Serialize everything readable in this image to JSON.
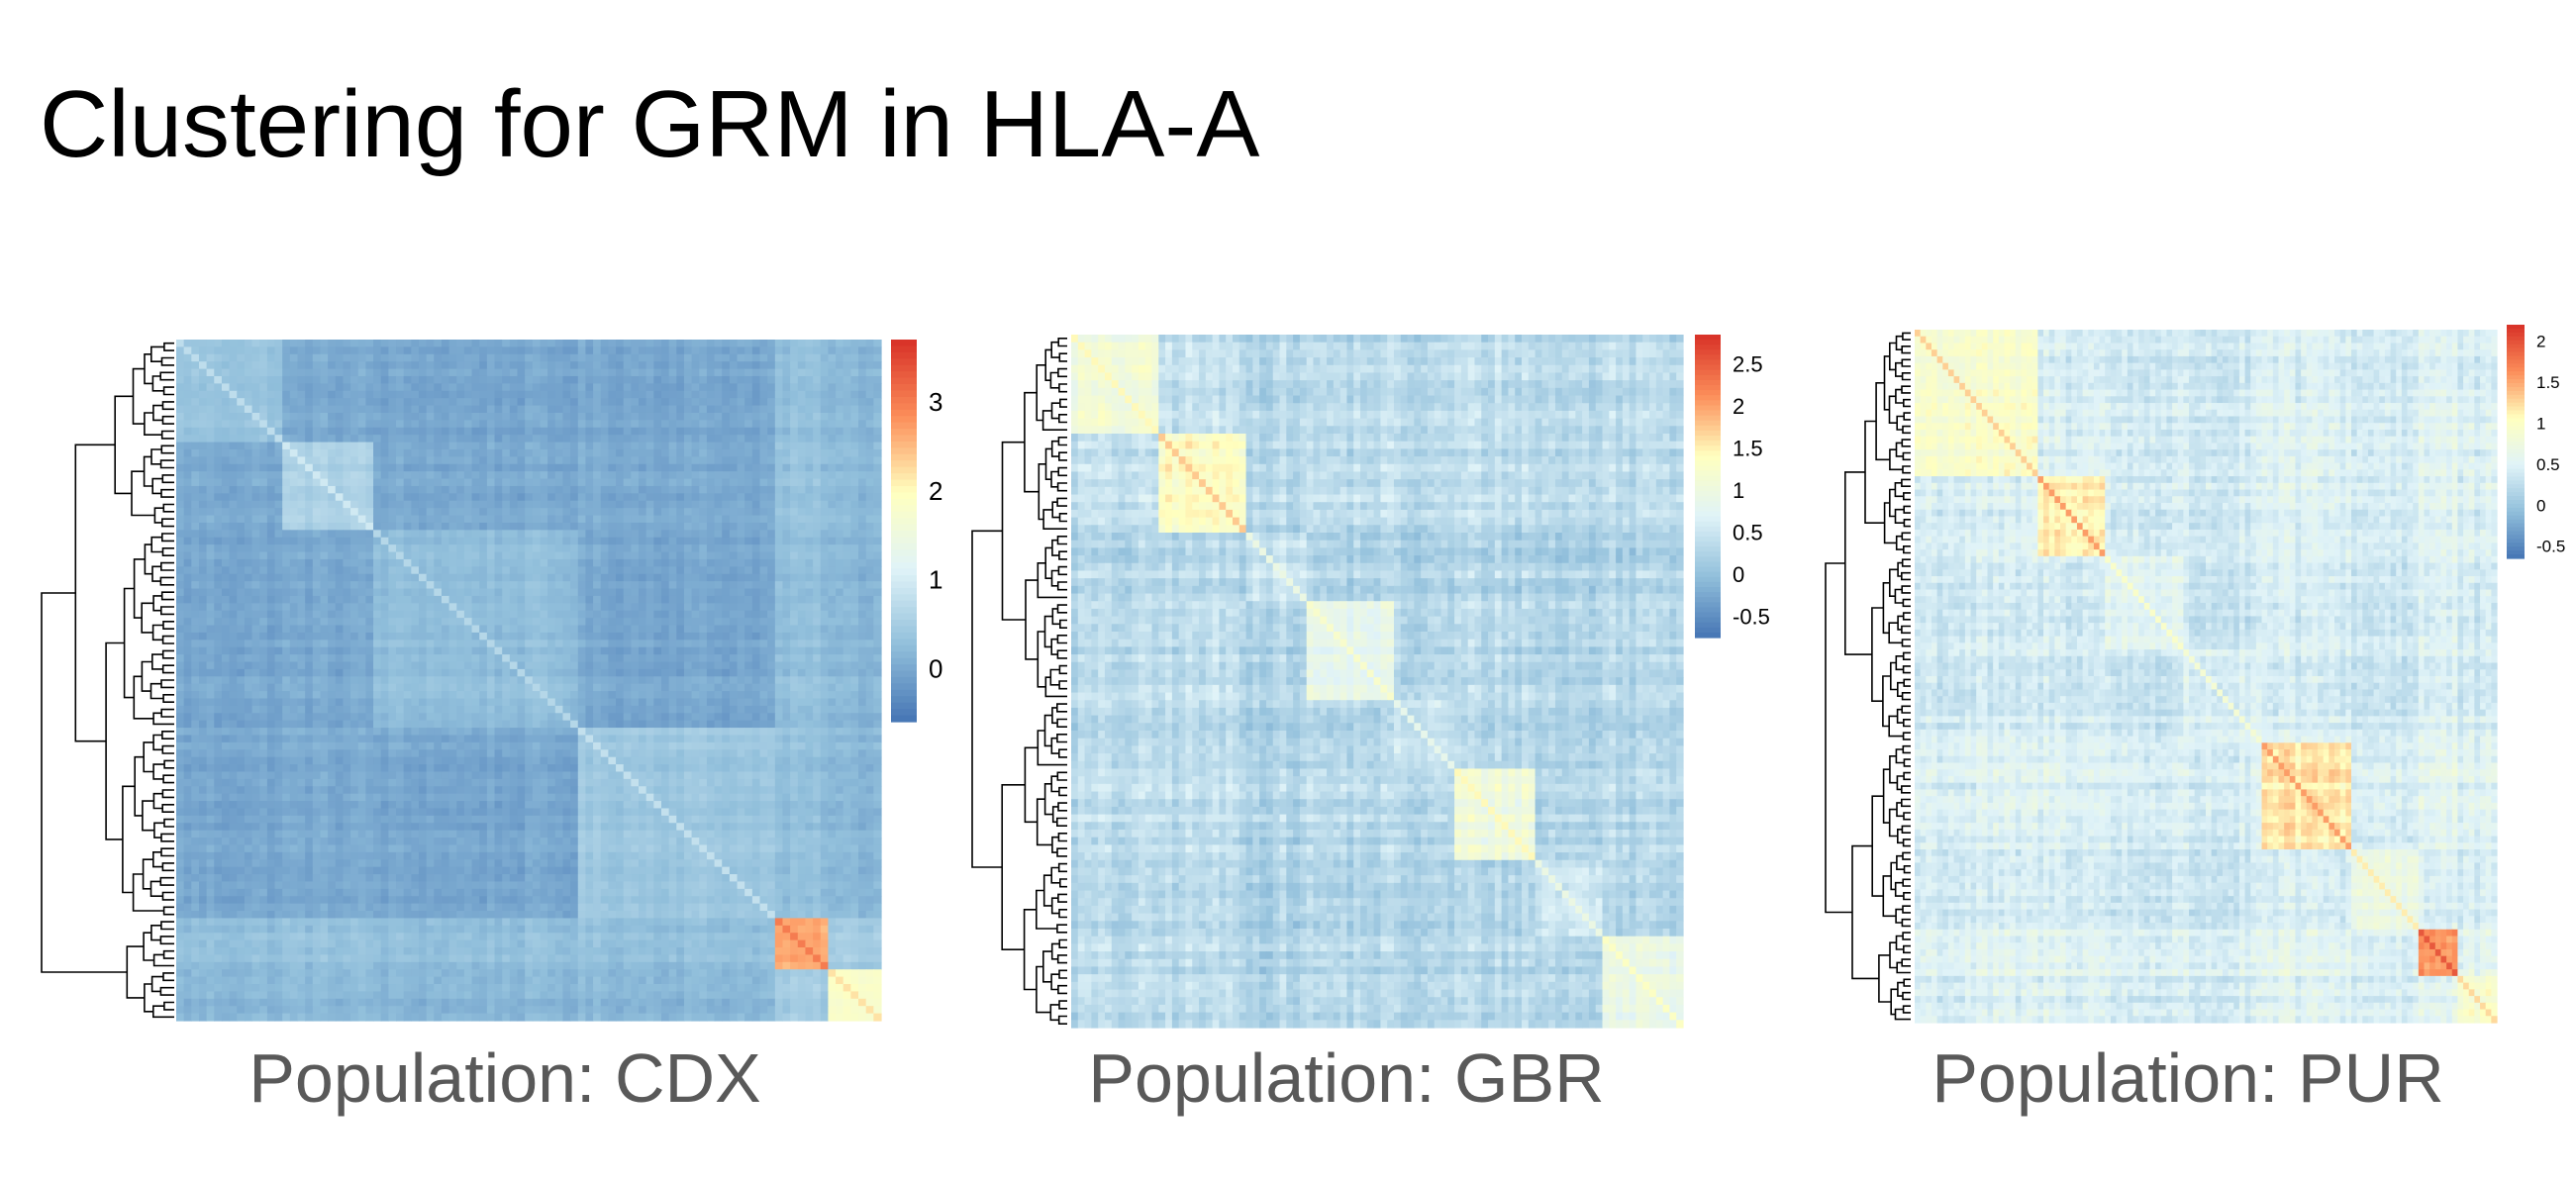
{
  "title": "Clustering for GRM in HLA-A",
  "colors": {
    "low": "#4575b4",
    "lowmid": "#91bfdb",
    "mid": "#e0f3f8",
    "midhigh": "#ffffbf",
    "high": "#fc8d59",
    "max": "#d73027",
    "dendrogram": "#000000",
    "caption": "#595959"
  },
  "chart_data": [
    {
      "type": "heatmap",
      "caption": "Population: CDX",
      "legend_ticks": [
        "0",
        "1",
        "2",
        "3"
      ],
      "legend_range": [
        -0.6,
        3.7
      ],
      "legend_placement": "right",
      "dendrogram": "left",
      "n_samples": 93,
      "clusters": [
        {
          "size": 14,
          "within": 0.35
        },
        {
          "size": 12,
          "within": 0.55
        },
        {
          "size": 27,
          "within": 0.25
        },
        {
          "size": 26,
          "within": 0.4
        },
        {
          "size": 7,
          "within": 2.6
        },
        {
          "size": 7,
          "within": 1.8
        }
      ],
      "between": 0.05,
      "noise": 0.12
    },
    {
      "type": "heatmap",
      "caption": "Population: GBR",
      "legend_ticks": [
        "-0.5",
        "0",
        "0.5",
        "1",
        "1.5",
        "2",
        "2.5"
      ],
      "legend_range": [
        -0.75,
        2.85
      ],
      "legend_placement": "right",
      "dendrogram": "left",
      "n_samples": 91,
      "clusters": [
        {
          "size": 13,
          "within": 1.05
        },
        {
          "size": 13,
          "within": 1.35
        },
        {
          "size": 9,
          "within": 0.55
        },
        {
          "size": 13,
          "within": 0.85
        },
        {
          "size": 9,
          "within": 0.45
        },
        {
          "size": 12,
          "within": 1.05
        },
        {
          "size": 10,
          "within": 0.55
        },
        {
          "size": 12,
          "within": 0.95
        }
      ],
      "between": 0.25,
      "noise": 0.22
    },
    {
      "type": "heatmap",
      "caption": "Population: PUR",
      "legend_ticks": [
        "-0.5",
        "0",
        "0.5",
        "1",
        "1.5",
        "2"
      ],
      "legend_range": [
        -0.65,
        2.2
      ],
      "legend_placement": "right",
      "dendrogram": "left",
      "n_samples": 104,
      "clusters": [
        {
          "size": 22,
          "within": 0.9
        },
        {
          "size": 12,
          "within": 1.15
        },
        {
          "size": 14,
          "within": 0.55
        },
        {
          "size": 14,
          "within": 0.45
        },
        {
          "size": 16,
          "within": 1.15
        },
        {
          "size": 12,
          "within": 0.75
        },
        {
          "size": 7,
          "within": 1.55
        },
        {
          "size": 7,
          "within": 0.85
        }
      ],
      "between": 0.35,
      "noise": 0.18
    }
  ]
}
